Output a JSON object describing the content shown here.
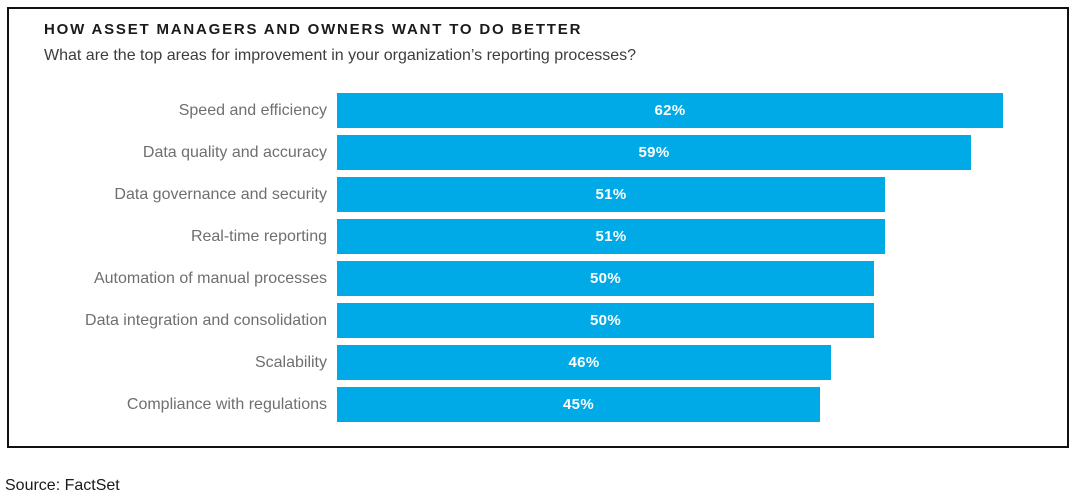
{
  "header": {
    "title": "HOW ASSET MANAGERS AND OWNERS WANT TO DO BETTER",
    "subtitle": "What are the top areas for improvement in your organization’s reporting processes?"
  },
  "chart_data": {
    "type": "bar",
    "orientation": "horizontal",
    "title": "HOW ASSET MANAGERS AND OWNERS WANT TO DO BETTER",
    "subtitle": "What are the top areas for improvement in your organization’s reporting processes?",
    "categories": [
      "Speed and efficiency",
      "Data quality and accuracy",
      "Data governance and security",
      "Real-time reporting",
      "Automation of manual processes",
      "Data integration and consolidation",
      "Scalability",
      "Compliance with regulations"
    ],
    "values": [
      62,
      59,
      51,
      51,
      50,
      50,
      46,
      45
    ],
    "value_labels": [
      "62%",
      "59%",
      "51%",
      "51%",
      "50%",
      "50%",
      "46%",
      "45%"
    ],
    "unit": "percent",
    "xlim": [
      0,
      67
    ],
    "grid": false,
    "legend": false,
    "value_label_position": "centered-inside-bar",
    "bar_color": "#00aae6",
    "category_label_color": "#6f6f6f",
    "value_label_color": "#ffffff"
  },
  "footer": {
    "source": "Source: FactSet"
  }
}
